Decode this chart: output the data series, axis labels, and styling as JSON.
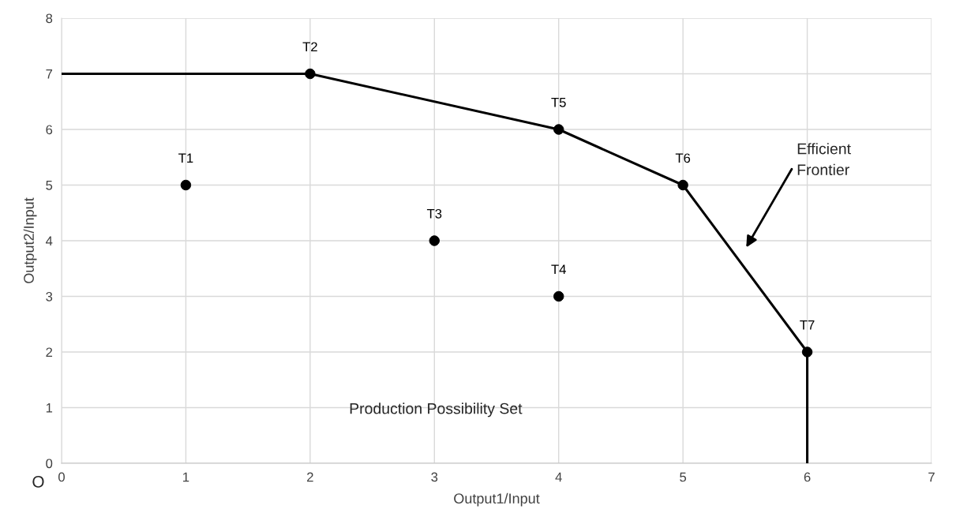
{
  "chart_data": {
    "type": "scatter",
    "xlabel": "Output1/Input",
    "ylabel": "Output2/Input",
    "xlim": [
      0,
      7
    ],
    "ylim": [
      0,
      8
    ],
    "xticks": [
      0,
      1,
      2,
      3,
      4,
      5,
      6,
      7
    ],
    "yticks": [
      0,
      1,
      2,
      3,
      4,
      5,
      6,
      7,
      8
    ],
    "grid": true,
    "series": [
      {
        "type": "line",
        "color": "#000000",
        "marker": "none",
        "line_style": "solid",
        "x": [
          0,
          2,
          4,
          5,
          6,
          6
        ],
        "values": [
          7,
          7,
          6,
          5,
          2,
          0
        ]
      },
      {
        "color": "#000000",
        "marker": "circle",
        "x": [
          1,
          2,
          3,
          4,
          4,
          5,
          6
        ],
        "values": [
          5,
          7,
          4,
          3,
          6,
          5,
          2
        ]
      }
    ],
    "annotations": [
      {
        "text": "T1",
        "x": 1,
        "y": 5
      },
      {
        "text": "T2",
        "x": 2,
        "y": 7
      },
      {
        "text": "T3",
        "x": 3,
        "y": 4
      },
      {
        "text": "T4",
        "x": 4,
        "y": 3
      },
      {
        "text": "T5",
        "x": 4,
        "y": 6
      },
      {
        "text": "T6",
        "x": 5,
        "y": 5
      },
      {
        "text": "T7",
        "x": 6,
        "y": 2
      },
      "Efficient\nFrontier",
      "Production Possibility Set",
      "O"
    ]
  }
}
